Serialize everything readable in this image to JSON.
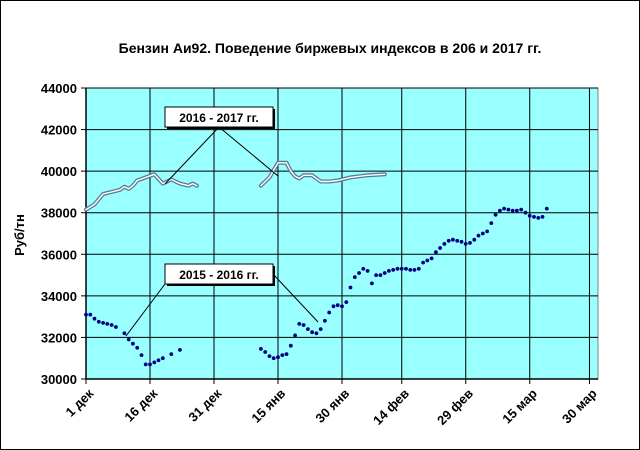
{
  "chart_data": {
    "type": "line",
    "title": "Бензин Аи92. Поведение биржевых индексов  в 206 и 2017 гг.",
    "ylabel": "Руб/тн",
    "xlabel": "",
    "ylim": [
      30000,
      44000
    ],
    "yticks": [
      30000,
      32000,
      34000,
      36000,
      38000,
      40000,
      42000,
      44000
    ],
    "ytick_labels": [
      "30000",
      "32000",
      "34000",
      "36000",
      "38000",
      "40000",
      "42000",
      "44000"
    ],
    "xlim": [
      0,
      120
    ],
    "xticks": [
      0,
      15,
      30,
      45,
      60,
      74,
      89,
      104,
      118
    ],
    "xtick_labels": [
      "1 дек",
      "16 дек",
      "31 дек",
      "15 янв",
      "30 янв",
      "14 фев",
      "29 фев",
      "15 мар",
      "30 мар"
    ],
    "grid": true,
    "plot_background": "#99ffff",
    "series": [
      {
        "name": "2016 - 2017 гг.",
        "style": "double-line",
        "color": "#5a7a93",
        "segments": [
          [
            [
              0,
              38150
            ],
            [
              2,
              38400
            ],
            [
              4,
              38900
            ],
            [
              6,
              39000
            ],
            [
              8,
              39100
            ],
            [
              9,
              39250
            ],
            [
              10,
              39150
            ],
            [
              11,
              39300
            ],
            [
              12,
              39550
            ],
            [
              14,
              39700
            ],
            [
              16,
              39850
            ],
            [
              18,
              39400
            ],
            [
              20,
              39600
            ],
            [
              22,
              39400
            ],
            [
              24,
              39300
            ],
            [
              25,
              39400
            ],
            [
              26,
              39300
            ]
          ],
          [
            [
              41,
              39300
            ],
            [
              43,
              39700
            ],
            [
              45,
              40400
            ],
            [
              47,
              40400
            ],
            [
              48,
              40000
            ],
            [
              49,
              39750
            ],
            [
              50,
              39650
            ],
            [
              51,
              39800
            ],
            [
              53,
              39800
            ],
            [
              54,
              39650
            ],
            [
              55,
              39500
            ],
            [
              57,
              39500
            ],
            [
              59,
              39550
            ],
            [
              60,
              39600
            ],
            [
              62,
              39700
            ],
            [
              64,
              39750
            ],
            [
              66,
              39800
            ],
            [
              70,
              39850
            ]
          ]
        ]
      },
      {
        "name": "2015 - 2016 гг.",
        "style": "dotted",
        "color": "#000080",
        "segments": [
          [
            [
              0,
              33100
            ],
            [
              1,
              33100
            ],
            [
              2,
              32900
            ],
            [
              3,
              32750
            ],
            [
              4,
              32700
            ],
            [
              5,
              32650
            ],
            [
              6,
              32600
            ],
            [
              7,
              32500
            ],
            [
              9,
              32200
            ],
            [
              10,
              31900
            ],
            [
              11,
              31700
            ],
            [
              12,
              31500
            ],
            [
              13,
              31150
            ],
            [
              14,
              30700
            ],
            [
              15,
              30700
            ],
            [
              16,
              30800
            ],
            [
              17,
              30900
            ],
            [
              18,
              31000
            ],
            [
              20,
              31200
            ],
            [
              22,
              31400
            ]
          ],
          [
            [
              41,
              31450
            ],
            [
              42,
              31300
            ],
            [
              43,
              31100
            ],
            [
              44,
              31000
            ],
            [
              45,
              31050
            ],
            [
              46,
              31150
            ],
            [
              47,
              31200
            ],
            [
              48,
              31600
            ],
            [
              49,
              32100
            ],
            [
              50,
              32650
            ],
            [
              51,
              32600
            ],
            [
              52,
              32400
            ],
            [
              53,
              32250
            ],
            [
              54,
              32200
            ],
            [
              55,
              32400
            ],
            [
              56,
              32800
            ],
            [
              57,
              33200
            ],
            [
              58,
              33500
            ],
            [
              59,
              33550
            ],
            [
              60,
              33500
            ],
            [
              61,
              33700
            ],
            [
              62,
              34400
            ],
            [
              63,
              34900
            ],
            [
              64,
              35100
            ],
            [
              65,
              35300
            ],
            [
              66,
              35200
            ],
            [
              67,
              34600
            ],
            [
              68,
              35000
            ],
            [
              69,
              35000
            ],
            [
              70,
              35100
            ],
            [
              71,
              35200
            ],
            [
              72,
              35250
            ],
            [
              73,
              35300
            ],
            [
              74,
              35300
            ],
            [
              75,
              35300
            ],
            [
              76,
              35250
            ],
            [
              77,
              35250
            ],
            [
              78,
              35300
            ],
            [
              79,
              35600
            ],
            [
              80,
              35700
            ],
            [
              81,
              35800
            ],
            [
              82,
              36100
            ],
            [
              83,
              36300
            ],
            [
              84,
              36500
            ],
            [
              85,
              36650
            ],
            [
              86,
              36700
            ],
            [
              87,
              36650
            ],
            [
              88,
              36600
            ],
            [
              89,
              36500
            ],
            [
              90,
              36550
            ],
            [
              91,
              36700
            ],
            [
              92,
              36900
            ],
            [
              93,
              37000
            ],
            [
              94,
              37100
            ],
            [
              95,
              37500
            ],
            [
              96,
              37900
            ],
            [
              97,
              38100
            ],
            [
              98,
              38200
            ],
            [
              99,
              38150
            ],
            [
              100,
              38100
            ],
            [
              101,
              38100
            ],
            [
              102,
              38150
            ],
            [
              103,
              38000
            ],
            [
              104,
              37850
            ],
            [
              105,
              37800
            ],
            [
              106,
              37750
            ],
            [
              107,
              37800
            ],
            [
              108,
              38200
            ]
          ]
        ]
      }
    ],
    "annotations": [
      {
        "text": "2016 - 2017 гг.",
        "series": "2016 - 2017 гг."
      },
      {
        "text": "2015 - 2016 гг.",
        "series": "2015 - 2016 гг."
      }
    ]
  }
}
